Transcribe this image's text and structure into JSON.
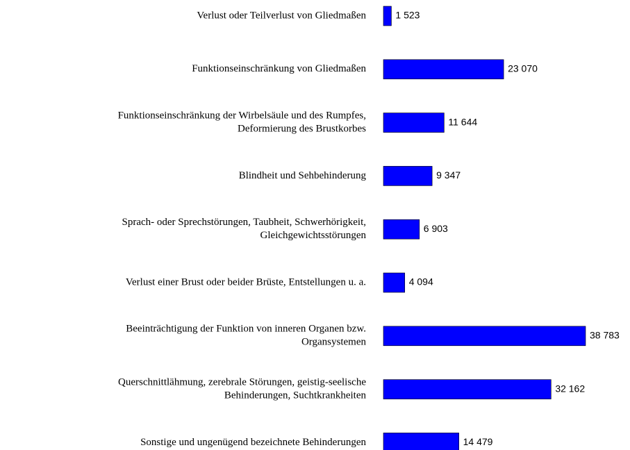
{
  "chart_data": {
    "type": "bar",
    "orientation": "horizontal",
    "categories": [
      [
        "Verlust oder Teilverlust von Gliedmaßen"
      ],
      [
        "Funktionseinschränkung von Gliedmaßen"
      ],
      [
        "Funktionseinschränkung der Wirbelsäule und des Rumpfes,",
        "Deformierung des Brustkorbes"
      ],
      [
        "Blindheit und Sehbehinderung"
      ],
      [
        "Sprach- oder Sprechstörungen, Taubheit, Schwerhörigkeit,",
        "Gleichgewichtsstörungen"
      ],
      [
        "Verlust einer Brust oder beider Brüste, Entstellungen u. a."
      ],
      [
        "Beeinträchtigung der Funktion von inneren Organen bzw.",
        "Organsystemen"
      ],
      [
        "Querschnittlähmung, zerebrale Störungen, geistig-seelische",
        "Behinderungen, Suchtkrankheiten"
      ],
      [
        "Sonstige und ungenügend bezeichnete Behinderungen"
      ]
    ],
    "values": [
      1523,
      23070,
      11644,
      9347,
      6903,
      4094,
      38783,
      32162,
      14479
    ],
    "value_labels": [
      "1 523",
      "23 070",
      "11 644",
      "9 347",
      "6 903",
      "4 094",
      "38 783",
      "32 162",
      "14 479"
    ],
    "color": "#0000ff"
  }
}
